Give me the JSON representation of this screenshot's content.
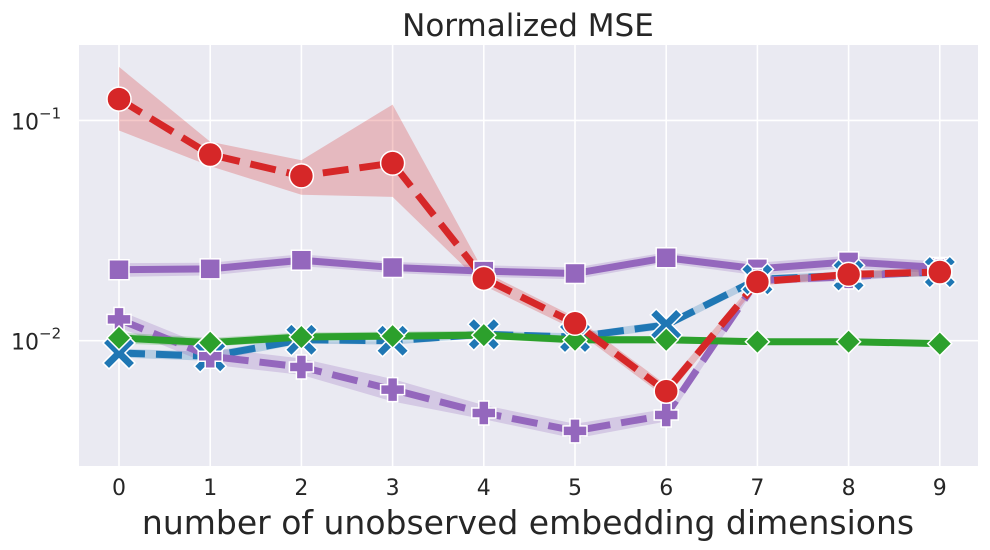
{
  "chart_data": {
    "type": "line",
    "title": "Normalized MSE",
    "xlabel": "number of unobserved embedding dimensions",
    "ylabel": "",
    "x": [
      0,
      1,
      2,
      3,
      4,
      5,
      6,
      7,
      8,
      9
    ],
    "x_tick_labels": [
      "0",
      "1",
      "2",
      "3",
      "4",
      "5",
      "6",
      "7",
      "8",
      "9"
    ],
    "yscale": "log",
    "ylim": [
      0.0027,
      0.22
    ],
    "y_ticks": [
      {
        "value": 0.01,
        "base": "10",
        "exponent": "−2"
      },
      {
        "value": 0.1,
        "base": "10",
        "exponent": "−1"
      }
    ],
    "grid": true,
    "background": "#eaeaf2",
    "series": [
      {
        "color": "#9467bd",
        "marker": "square",
        "dash": "solid",
        "values": [
          0.021,
          0.0212,
          0.0232,
          0.0215,
          0.0207,
          0.0202,
          0.0238,
          0.0212,
          0.0228,
          0.0215
        ],
        "band_low": [
          0.0195,
          0.0198,
          0.0218,
          0.0203,
          0.0195,
          0.019,
          0.0225,
          0.0198,
          0.0214,
          0.0202
        ],
        "band_high": [
          0.0225,
          0.0226,
          0.0247,
          0.0228,
          0.022,
          0.0215,
          0.0252,
          0.0226,
          0.0243,
          0.0229
        ]
      },
      {
        "color": "#1f77b4",
        "marker": "x",
        "dash": "dashed",
        "values": [
          0.0088,
          0.0085,
          0.0101,
          0.01,
          0.0107,
          0.0104,
          0.0118,
          0.019,
          0.0198,
          0.0205
        ],
        "band_low": [
          0.0084,
          0.0081,
          0.0097,
          0.0096,
          0.0103,
          0.01,
          0.0113,
          0.0182,
          0.019,
          0.0197
        ],
        "band_high": [
          0.0092,
          0.0089,
          0.0105,
          0.0104,
          0.0111,
          0.0108,
          0.0123,
          0.0198,
          0.0206,
          0.0213
        ]
      },
      {
        "color": "#9467bd",
        "marker": "plus",
        "dash": "dashed",
        "values": [
          0.0125,
          0.0085,
          0.0076,
          0.006,
          0.0047,
          0.0039,
          0.0046,
          0.0188,
          0.0195,
          0.0208
        ],
        "band_low": [
          0.0115,
          0.0078,
          0.007,
          0.0053,
          0.0044,
          0.0036,
          0.0043,
          0.018,
          0.0187,
          0.02
        ],
        "band_high": [
          0.0137,
          0.0093,
          0.0083,
          0.0067,
          0.0051,
          0.0042,
          0.0049,
          0.0196,
          0.0203,
          0.0216
        ]
      },
      {
        "color": "#2ca02c",
        "marker": "diamond",
        "dash": "solid",
        "values": [
          0.0103,
          0.0098,
          0.0104,
          0.0105,
          0.0106,
          0.0101,
          0.0101,
          0.0099,
          0.0099,
          0.0097
        ],
        "band_low": [
          0.0097,
          0.0094,
          0.01,
          0.0101,
          0.0102,
          0.0097,
          0.0097,
          0.0096,
          0.0096,
          0.0094
        ],
        "band_high": [
          0.0109,
          0.0103,
          0.0109,
          0.011,
          0.0111,
          0.0105,
          0.0105,
          0.0102,
          0.0102,
          0.01
        ]
      },
      {
        "color": "#d62728",
        "marker": "circle",
        "dash": "dashed",
        "values": [
          0.125,
          0.07,
          0.056,
          0.064,
          0.0192,
          0.012,
          0.0059,
          0.0185,
          0.02,
          0.0205
        ],
        "band_low": [
          0.09,
          0.062,
          0.046,
          0.045,
          0.0178,
          0.0112,
          0.0055,
          0.0178,
          0.0192,
          0.0197
        ],
        "band_high": [
          0.175,
          0.08,
          0.066,
          0.118,
          0.0206,
          0.0128,
          0.0063,
          0.0192,
          0.0208,
          0.0213
        ]
      }
    ]
  }
}
